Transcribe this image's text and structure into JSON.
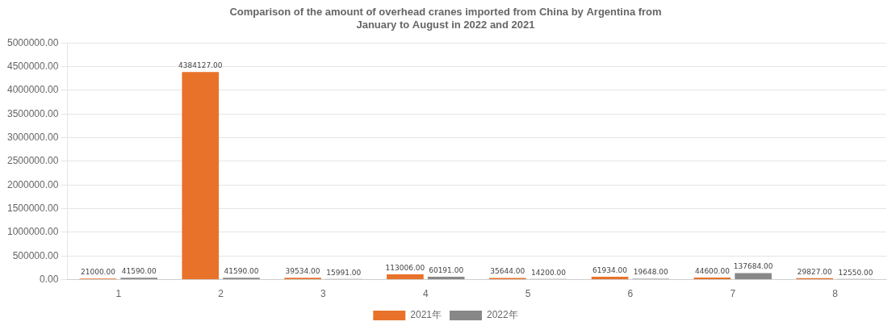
{
  "chart_data": {
    "type": "bar",
    "title": "Comparison of the amount of overhead cranes imported from China by Argentina from\nJanuary to August in 2022 and 2021",
    "categories": [
      1,
      2,
      3,
      4,
      5,
      6,
      7,
      8
    ],
    "series": [
      {
        "name": "2021年",
        "color": "#E8722A",
        "values": [
          21000,
          4384127,
          39534,
          113006,
          35644,
          61934,
          44600,
          29827
        ],
        "value_labels": [
          "21000.00",
          "4384127.00",
          "39534.00",
          "113006.00",
          "35644.00",
          "61934.00",
          "44600.00",
          "29827.00"
        ]
      },
      {
        "name": "2022年",
        "color": "#888888",
        "values": [
          41590,
          41590,
          15991,
          60191,
          14200,
          19648,
          137684,
          12550
        ],
        "value_labels": [
          "41590.00",
          "41590.00",
          "15991.00",
          "60191.00",
          "14200.00",
          "19648.00",
          "137684.00",
          "12550.00"
        ]
      }
    ],
    "ylim": [
      0,
      5000000
    ],
    "yticks": [
      {
        "value": 0,
        "label": "0.00"
      },
      {
        "value": 500000,
        "label": "500000.00"
      },
      {
        "value": 1000000,
        "label": "1000000.00"
      },
      {
        "value": 1500000,
        "label": "1500000.00"
      },
      {
        "value": 2000000,
        "label": "2000000.00"
      },
      {
        "value": 2500000,
        "label": "2500000.00"
      },
      {
        "value": 3000000,
        "label": "3000000.00"
      },
      {
        "value": 3500000,
        "label": "3500000.00"
      },
      {
        "value": 4000000,
        "label": "4000000.00"
      },
      {
        "value": 4500000,
        "label": "4500000.00"
      },
      {
        "value": 5000000,
        "label": "5000000.00"
      }
    ],
    "grid": true,
    "legend": "bottom",
    "data_labels": true
  }
}
